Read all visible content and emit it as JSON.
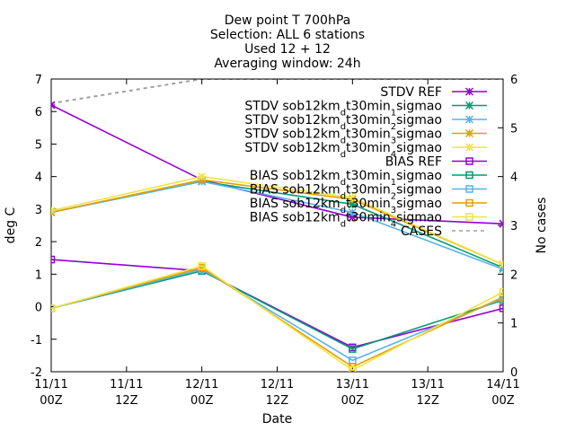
{
  "chart_data": {
    "type": "line",
    "title_lines": [
      "Dew point T 700hPa",
      "Selection: ALL      6 stations",
      "Used 12 + 12",
      "Averaging window: 24h"
    ],
    "xlabel": "Date",
    "ylabel": "deg C",
    "y2label": "No cases",
    "ylim": [
      -2,
      7
    ],
    "y2lim": [
      0,
      6
    ],
    "y_ticks": [
      "-2",
      "-1",
      "0",
      "1",
      "2",
      "3",
      "4",
      "5",
      "6",
      "7"
    ],
    "y2_ticks": [
      "0",
      "1",
      "2",
      "3",
      "4",
      "5",
      "6"
    ],
    "x_ticks": [
      {
        "line1": "11/11",
        "line2": "00Z"
      },
      {
        "line1": "11/11",
        "line2": "12Z"
      },
      {
        "line1": "12/11",
        "line2": "00Z"
      },
      {
        "line1": "12/11",
        "line2": "12Z"
      },
      {
        "line1": "13/11",
        "line2": "00Z"
      },
      {
        "line1": "13/11",
        "line2": "12Z"
      },
      {
        "line1": "14/11",
        "line2": "00Z"
      }
    ],
    "legend_position": "top-right",
    "grid": false,
    "series": [
      {
        "name": "STDV REF",
        "kind": "stdv",
        "color": "#9400d3",
        "marker": "x",
        "x": [
          "11/11 00Z",
          "12/11 00Z",
          "13/11 00Z",
          "14/11 00Z"
        ],
        "y": [
          6.2,
          3.9,
          2.75,
          2.55
        ]
      },
      {
        "name": "STDV sob12km_d t30min_1 sigmao",
        "label_parts": [
          "STDV sob12km",
          "d",
          "t30min",
          "1",
          "sigmao"
        ],
        "kind": "stdv",
        "color": "#009e73",
        "marker": "x",
        "x": [
          "11/11 00Z",
          "12/11 00Z",
          "13/11 00Z",
          "14/11 00Z"
        ],
        "y": [
          2.9,
          3.85,
          3.15,
          1.2
        ]
      },
      {
        "name": "STDV sob12km_d t30min_2 sigmao",
        "label_parts": [
          "STDV sob12km",
          "d",
          "t30min",
          "2",
          "sigmao"
        ],
        "kind": "stdv",
        "color": "#56b4e9",
        "marker": "x",
        "x": [
          "11/11 00Z",
          "12/11 00Z",
          "13/11 00Z",
          "14/11 00Z"
        ],
        "y": [
          2.9,
          3.85,
          2.9,
          1.15
        ]
      },
      {
        "name": "STDV sob12km_d t30min_3 sigmao",
        "label_parts": [
          "STDV sob12km",
          "d",
          "t30min",
          "3",
          "sigmao"
        ],
        "kind": "stdv",
        "color": "#e69f00",
        "marker": "x",
        "x": [
          "11/11 00Z",
          "12/11 00Z",
          "13/11 00Z",
          "14/11 00Z"
        ],
        "y": [
          2.9,
          3.9,
          3.3,
          1.3
        ]
      },
      {
        "name": "STDV sob12km_d t30min_4 sigmao",
        "label_parts": [
          "STDV sob12km",
          "d",
          "t30min",
          "4",
          "sigmao"
        ],
        "kind": "stdv",
        "color": "#f0e442",
        "marker": "x",
        "x": [
          "11/11 00Z",
          "12/11 00Z",
          "13/11 00Z",
          "14/11 00Z"
        ],
        "y": [
          2.95,
          4.0,
          3.35,
          1.3
        ]
      },
      {
        "name": "BIAS REF",
        "kind": "bias",
        "color": "#9400d3",
        "marker": "square",
        "x": [
          "11/11 00Z",
          "12/11 00Z",
          "13/11 00Z",
          "14/11 00Z"
        ],
        "y": [
          1.45,
          1.1,
          -1.25,
          -0.05
        ]
      },
      {
        "name": "BIAS sob12km_d t30min_1 sigmao",
        "label_parts": [
          "BIAS sob12km",
          "d",
          "t30min",
          "1",
          "sigmao"
        ],
        "kind": "bias",
        "color": "#009e73",
        "marker": "square",
        "x": [
          "11/11 00Z",
          "12/11 00Z",
          "13/11 00Z",
          "14/11 00Z"
        ],
        "y": [
          -0.05,
          1.1,
          -1.3,
          0.2
        ]
      },
      {
        "name": "BIAS sob12km_d t30min_2 sigmao",
        "label_parts": [
          "BIAS sob12km",
          "d",
          "t30min",
          "2",
          "sigmao"
        ],
        "kind": "bias",
        "color": "#56b4e9",
        "marker": "square",
        "x": [
          "11/11 00Z",
          "12/11 00Z",
          "13/11 00Z",
          "14/11 00Z"
        ],
        "y": [
          -0.05,
          1.15,
          -1.65,
          0.25
        ]
      },
      {
        "name": "BIAS sob12km_d t30min_3 sigmao",
        "label_parts": [
          "BIAS sob12km",
          "d",
          "t30min",
          "3",
          "sigmao"
        ],
        "kind": "bias",
        "color": "#e69f00",
        "marker": "square",
        "x": [
          "11/11 00Z",
          "12/11 00Z",
          "13/11 00Z",
          "14/11 00Z"
        ],
        "y": [
          -0.05,
          1.2,
          -1.85,
          0.3
        ]
      },
      {
        "name": "BIAS sob12km_d t30min_4 sigmao",
        "label_parts": [
          "BIAS sob12km",
          "d",
          "t30min",
          "4",
          "sigmao"
        ],
        "kind": "bias",
        "color": "#f0e442",
        "marker": "square",
        "x": [
          "11/11 00Z",
          "12/11 00Z",
          "13/11 00Z",
          "14/11 00Z"
        ],
        "y": [
          -0.05,
          1.25,
          -1.95,
          0.45
        ]
      },
      {
        "name": "CASES",
        "kind": "cases",
        "axis": "y2",
        "color": "#a0a0a0",
        "marker": "none",
        "dashed": true,
        "x": [
          "11/11 00Z",
          "12/11 00Z",
          "13/11 00Z",
          "14/11 00Z"
        ],
        "y": [
          5.5,
          6,
          6,
          6
        ]
      }
    ]
  }
}
